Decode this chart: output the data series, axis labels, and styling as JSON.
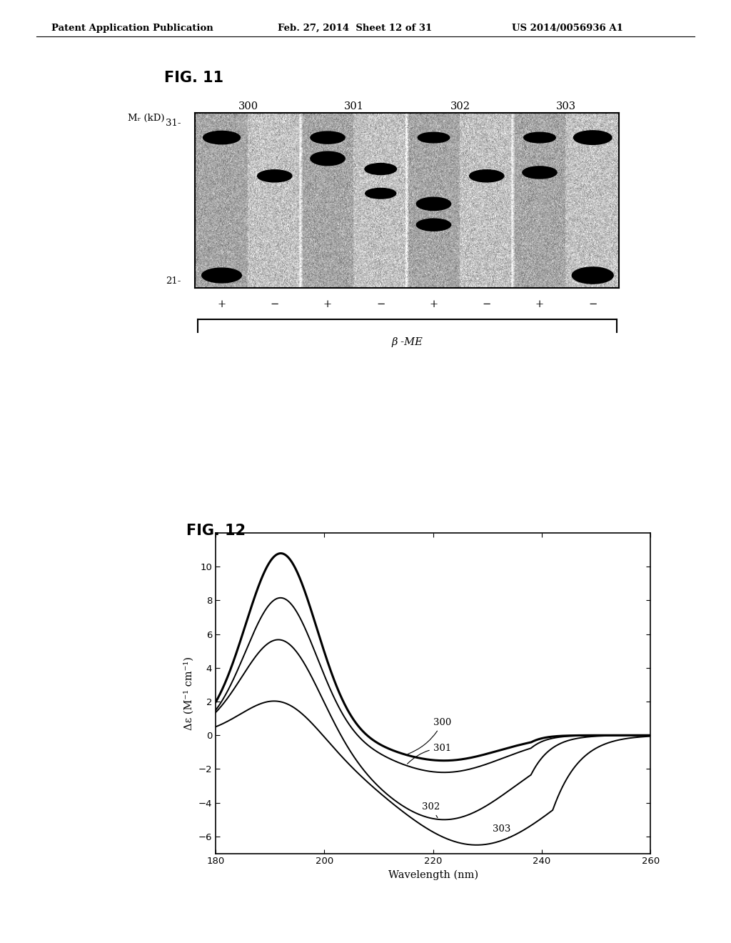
{
  "header_left": "Patent Application Publication",
  "header_mid": "Feb. 27, 2014  Sheet 12 of 31",
  "header_right": "US 2014/0056936 A1",
  "header_fontsize": 9.5,
  "fig11_title": "FIG. 11",
  "fig12_title": "FIG. 12",
  "gel_label_x": "Mᵣ (kD)",
  "gel_columns": [
    "300",
    "301",
    "302",
    "303"
  ],
  "gel_ylabel_31": "31-",
  "gel_ylabel_21": "21-",
  "beta_me_label": "β -ME",
  "plus_minus": [
    "+",
    "−",
    "+",
    "−",
    "+",
    "−",
    "+",
    "−"
  ],
  "cd_xlabel": "Wavelength (nm)",
  "cd_ylabel": "Δε (M⁻¹ cm⁻¹)",
  "cd_xlim": [
    180,
    260
  ],
  "cd_ylim": [
    -7,
    12
  ],
  "cd_yticks": [
    -6,
    -4,
    -2,
    0,
    2,
    4,
    6,
    8,
    10
  ],
  "cd_xticks": [
    180,
    200,
    220,
    240,
    260
  ],
  "cd_curve_labels": [
    "300",
    "301",
    "302",
    "303"
  ],
  "background_color": "#ffffff"
}
